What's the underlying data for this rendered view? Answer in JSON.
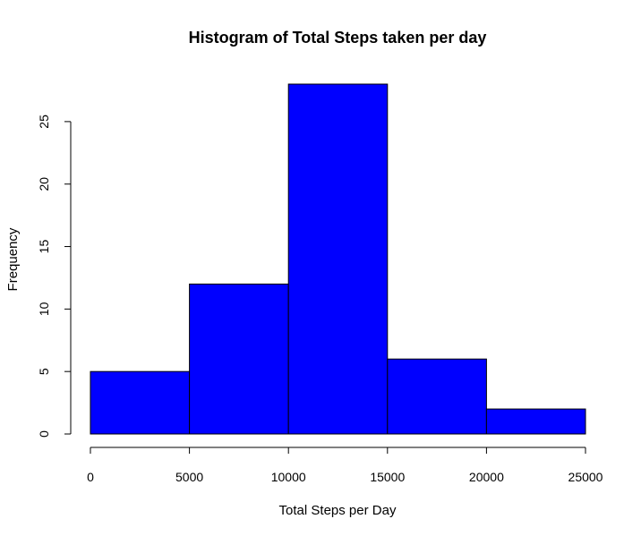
{
  "chart_data": {
    "type": "bar",
    "title": "Histogram of Total Steps taken per day",
    "xlabel": "Total Steps per Day",
    "ylabel": "Frequency",
    "bins": [
      {
        "from": 0,
        "to": 5000,
        "count": 5
      },
      {
        "from": 5000,
        "to": 10000,
        "count": 12
      },
      {
        "from": 10000,
        "to": 15000,
        "count": 28
      },
      {
        "from": 15000,
        "to": 20000,
        "count": 6
      },
      {
        "from": 20000,
        "to": 25000,
        "count": 2
      }
    ],
    "xlim": [
      0,
      25000
    ],
    "ylim": [
      0,
      28
    ],
    "xticks": [
      0,
      5000,
      10000,
      15000,
      20000,
      25000
    ],
    "yticks": [
      0,
      5,
      10,
      15,
      20,
      25
    ],
    "bar_color": "#0000ff",
    "grid": false,
    "legend": "none"
  }
}
